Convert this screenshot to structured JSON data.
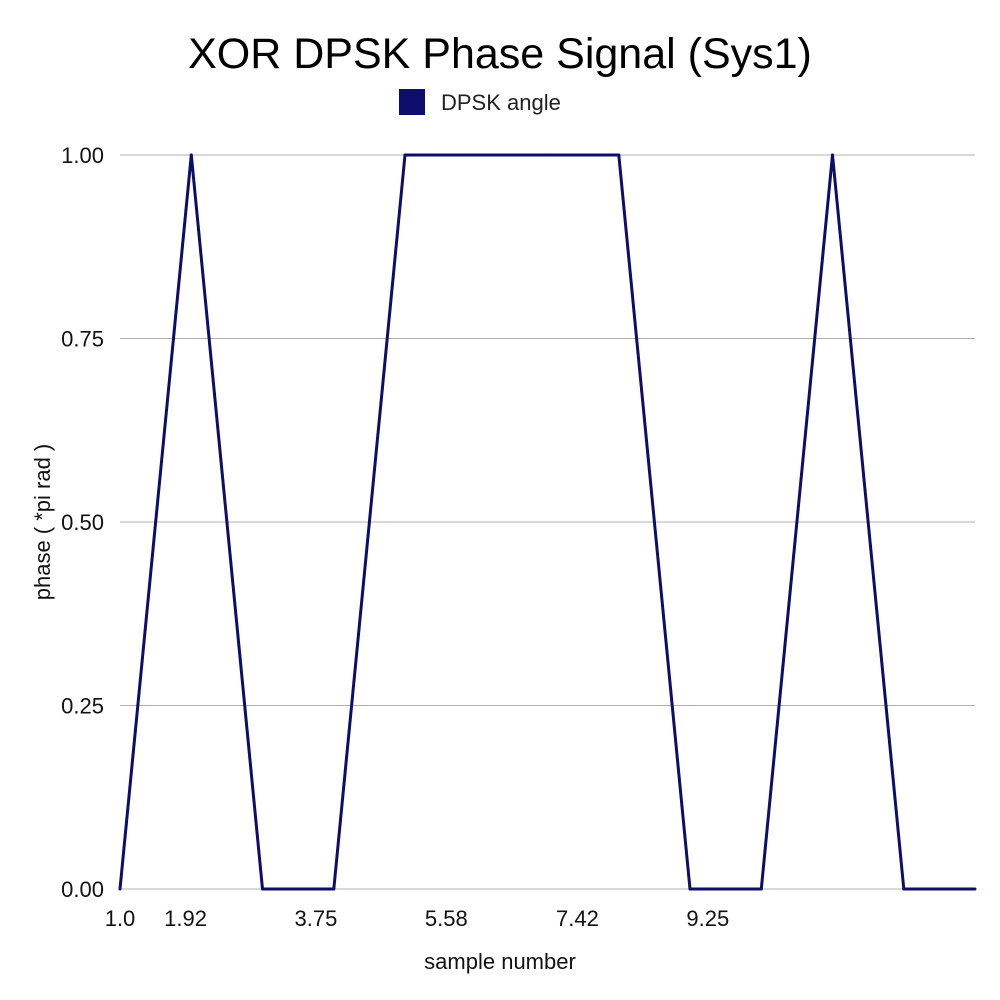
{
  "chart_data": {
    "type": "line",
    "title": "XOR DPSK Phase Signal (Sys1)",
    "xlabel": "sample number",
    "ylabel": "phase ( *pi rad )",
    "xlim": [
      1.0,
      13.0
    ],
    "ylim": [
      0.0,
      1.0
    ],
    "x_tick_labels": [
      "1.0",
      "1.92",
      "3.75",
      "5.58",
      "7.42",
      "9.25"
    ],
    "x_tick_values": [
      1.0,
      1.92,
      3.75,
      5.58,
      7.42,
      9.25
    ],
    "y_tick_labels": [
      "0.00",
      "0.25",
      "0.50",
      "0.75",
      "1.00"
    ],
    "y_tick_values": [
      0.0,
      0.25,
      0.5,
      0.75,
      1.0
    ],
    "grid": "horizontal",
    "legend": "top",
    "series": [
      {
        "name": "DPSK angle",
        "color": "#0d0d6b",
        "x": [
          1,
          2,
          3,
          4,
          5,
          6,
          7,
          8,
          9,
          10,
          11,
          12,
          13
        ],
        "y": [
          0,
          1,
          0,
          0,
          1,
          1,
          1,
          1,
          0,
          0,
          1,
          0,
          0
        ]
      }
    ]
  }
}
